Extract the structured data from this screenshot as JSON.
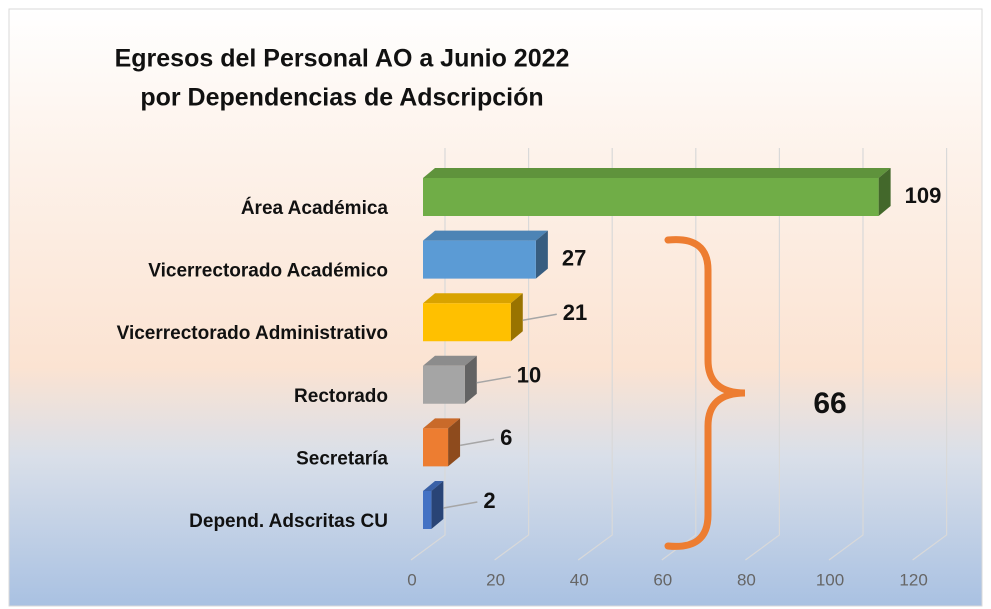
{
  "chart_data": {
    "type": "bar3d_horizontal",
    "title": [
      "Egresos del Personal AO a Junio 2022",
      "por Dependencias de Adscripción"
    ],
    "categories": [
      "Área Académica",
      "Vicerrectorado Académico",
      "Vicerrectorado Administrativo",
      "Rectorado",
      "Secretaría",
      "Depend. Adscritas CU"
    ],
    "values": [
      109,
      27,
      21,
      10,
      6,
      2
    ],
    "colors": [
      "#70ad47",
      "#5b9bd5",
      "#ffc000",
      "#a5a5a5",
      "#ed7d31",
      "#4472c4"
    ],
    "xlim": [
      0,
      120
    ],
    "xticks": [
      0,
      20,
      40,
      60,
      80,
      100,
      120
    ],
    "grid": true,
    "annotation": {
      "text": "66",
      "brace_color": "#ed7d31"
    }
  }
}
